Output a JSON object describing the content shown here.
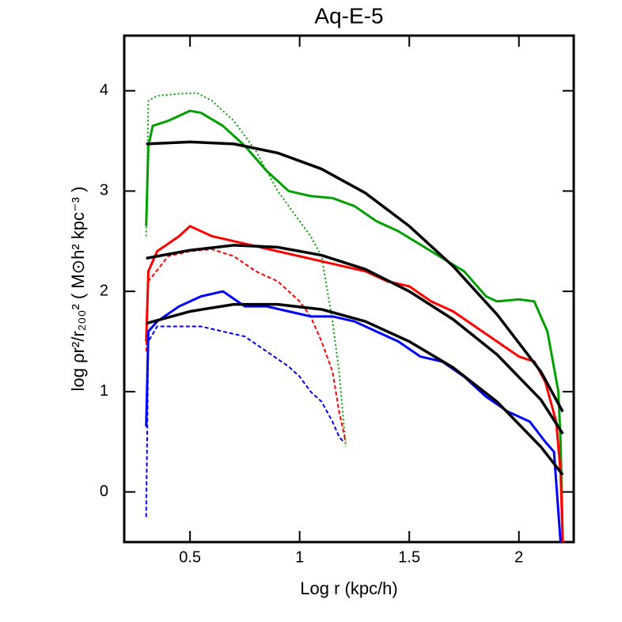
{
  "chart_data": {
    "type": "line",
    "title": "Aq-E-5",
    "x_label": "Log r (kpc/h)",
    "y_label": "log ρr²/r₂₀₀² ( M⊙h² kpc⁻³ )",
    "xlim": [
      0.2,
      2.25
    ],
    "ylim": [
      -0.5,
      4.55
    ],
    "xticks": [
      0.5,
      1.0,
      1.5,
      2.0
    ],
    "yticks": [
      0,
      1,
      2,
      3,
      4
    ],
    "series": [
      {
        "color": "#00a000",
        "dash": "solid",
        "x": [
          0.3,
          0.31,
          0.33,
          0.4,
          0.5,
          0.55,
          0.65,
          0.75,
          0.85,
          0.95,
          1.05,
          1.15,
          1.25,
          1.35,
          1.45,
          1.6,
          1.75,
          1.85,
          1.9,
          2.0,
          2.07,
          2.13,
          2.18,
          2.19,
          2.2
        ],
        "values": [
          2.65,
          3.45,
          3.65,
          3.7,
          3.8,
          3.78,
          3.65,
          3.45,
          3.2,
          3.0,
          2.95,
          2.93,
          2.85,
          2.7,
          2.6,
          2.4,
          2.2,
          1.95,
          1.9,
          1.92,
          1.9,
          1.6,
          1.0,
          0.5,
          -0.5
        ]
      },
      {
        "color": "#00a000",
        "dash": "dotted",
        "x": [
          0.3,
          0.31,
          0.35,
          0.45,
          0.53,
          0.6,
          0.7,
          0.8,
          0.9,
          1.0,
          1.05,
          1.1,
          1.15,
          1.18,
          1.2,
          1.21
        ],
        "values": [
          2.55,
          3.9,
          3.95,
          3.97,
          3.98,
          3.9,
          3.7,
          3.4,
          3.0,
          2.7,
          2.55,
          2.35,
          1.7,
          1.2,
          0.7,
          0.45
        ]
      },
      {
        "color": "#ff0000",
        "dash": "solid",
        "x": [
          0.3,
          0.31,
          0.35,
          0.45,
          0.5,
          0.6,
          0.7,
          0.8,
          0.9,
          1.0,
          1.1,
          1.2,
          1.3,
          1.4,
          1.5,
          1.6,
          1.7,
          1.8,
          1.9,
          2.0,
          2.07,
          2.12,
          2.17,
          2.19,
          2.2
        ],
        "values": [
          1.5,
          2.2,
          2.4,
          2.55,
          2.65,
          2.55,
          2.5,
          2.45,
          2.4,
          2.35,
          2.3,
          2.25,
          2.2,
          2.1,
          2.05,
          1.9,
          1.8,
          1.65,
          1.5,
          1.35,
          1.3,
          1.1,
          0.7,
          0.2,
          -0.5
        ]
      },
      {
        "color": "#ff0000",
        "dash": "dashed",
        "x": [
          0.3,
          0.31,
          0.4,
          0.5,
          0.6,
          0.7,
          0.8,
          0.9,
          1.0,
          1.05,
          1.1,
          1.15,
          1.18,
          1.2,
          1.21
        ],
        "values": [
          1.4,
          2.1,
          2.35,
          2.4,
          2.42,
          2.35,
          2.2,
          2.1,
          1.9,
          1.75,
          1.5,
          1.2,
          0.8,
          0.6,
          0.5
        ]
      },
      {
        "color": "#0000ff",
        "dash": "solid",
        "x": [
          0.3,
          0.31,
          0.35,
          0.45,
          0.55,
          0.65,
          0.75,
          0.85,
          0.95,
          1.05,
          1.15,
          1.25,
          1.35,
          1.45,
          1.55,
          1.65,
          1.75,
          1.85,
          1.95,
          2.05,
          2.12,
          2.16,
          2.19
        ],
        "values": [
          0.65,
          1.6,
          1.7,
          1.85,
          1.95,
          2.0,
          1.85,
          1.85,
          1.8,
          1.75,
          1.75,
          1.7,
          1.6,
          1.5,
          1.35,
          1.3,
          1.15,
          0.95,
          0.8,
          0.7,
          0.5,
          0.4,
          -0.5
        ]
      },
      {
        "color": "#0000ff",
        "dash": "dashed",
        "x": [
          0.3,
          0.31,
          0.35,
          0.45,
          0.55,
          0.65,
          0.75,
          0.85,
          0.95,
          1.0,
          1.05,
          1.1,
          1.15,
          1.18,
          1.2
        ],
        "values": [
          -0.25,
          1.5,
          1.65,
          1.65,
          1.65,
          1.6,
          1.55,
          1.4,
          1.25,
          1.15,
          1.0,
          0.9,
          0.7,
          0.55,
          0.5
        ]
      },
      {
        "color": "#000000",
        "dash": "solid",
        "x": [
          0.3,
          0.5,
          0.7,
          0.9,
          1.1,
          1.3,
          1.5,
          1.7,
          1.9,
          2.1,
          2.2
        ],
        "values": [
          3.47,
          3.49,
          3.47,
          3.38,
          3.22,
          2.98,
          2.65,
          2.25,
          1.77,
          1.2,
          0.8
        ]
      },
      {
        "color": "#000000",
        "dash": "solid",
        "x": [
          0.3,
          0.5,
          0.7,
          0.9,
          1.1,
          1.3,
          1.5,
          1.7,
          1.9,
          2.1,
          2.2
        ],
        "values": [
          2.33,
          2.41,
          2.46,
          2.44,
          2.36,
          2.22,
          2.0,
          1.72,
          1.37,
          0.92,
          0.58
        ]
      },
      {
        "color": "#000000",
        "dash": "solid",
        "x": [
          0.3,
          0.5,
          0.7,
          0.9,
          1.1,
          1.3,
          1.5,
          1.7,
          1.9,
          2.1,
          2.2
        ],
        "values": [
          1.68,
          1.8,
          1.87,
          1.87,
          1.82,
          1.7,
          1.5,
          1.24,
          0.9,
          0.45,
          0.17
        ]
      }
    ]
  }
}
